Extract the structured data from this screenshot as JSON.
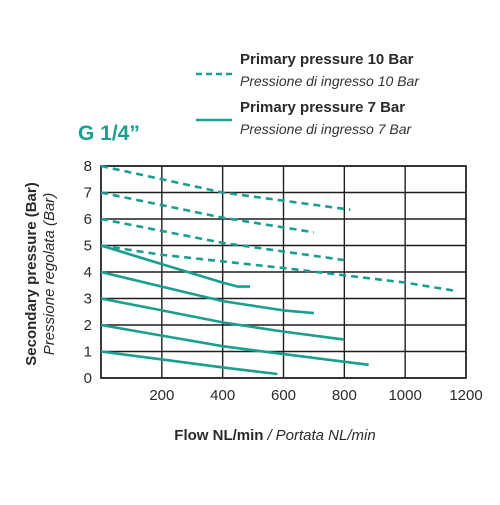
{
  "chart_data": {
    "type": "line",
    "title": "G 1/4”",
    "xlabel": "Flow NL/min",
    "xlabel_sub": "Portata NL/min",
    "ylabel": "Secondary pressure (Bar)",
    "ylabel_sub": "Pressione regolata (Bar)",
    "xlim": [
      0,
      1200
    ],
    "ylim": [
      0,
      8
    ],
    "xticks": [
      200,
      400,
      600,
      800,
      1000,
      1200
    ],
    "yticks": [
      0,
      1,
      2,
      3,
      4,
      5,
      6,
      7,
      8
    ],
    "grid": true,
    "legend_placement": "top-right",
    "accent_color": "#1a9e8f",
    "legend": [
      {
        "style": "dashed",
        "name": "Primary pressure 10 Bar",
        "name_sub": "Pressione di ingresso 10 Bar"
      },
      {
        "style": "solid",
        "name": "Primary pressure 7 Bar",
        "name_sub": "Pressione di ingresso 7 Bar"
      }
    ],
    "series": [
      {
        "group": "10 Bar",
        "style": "dashed",
        "x": [
          0,
          400,
          820
        ],
        "y": [
          8.0,
          7.0,
          6.35
        ]
      },
      {
        "group": "10 Bar",
        "style": "dashed",
        "x": [
          0,
          400,
          700
        ],
        "y": [
          7.0,
          6.05,
          5.5
        ]
      },
      {
        "group": "10 Bar",
        "style": "dashed",
        "x": [
          0,
          400,
          800
        ],
        "y": [
          6.0,
          5.1,
          4.45
        ]
      },
      {
        "group": "10 Bar",
        "style": "dashed",
        "x": [
          0,
          200,
          600,
          1000,
          1160
        ],
        "y": [
          5.0,
          4.65,
          4.15,
          3.6,
          3.3
        ]
      },
      {
        "group": "7 Bar",
        "style": "solid",
        "x": [
          0,
          200,
          400,
          450,
          490
        ],
        "y": [
          5.0,
          4.3,
          3.6,
          3.45,
          3.45
        ]
      },
      {
        "group": "7 Bar",
        "style": "solid",
        "x": [
          0,
          200,
          400,
          600,
          700
        ],
        "y": [
          4.0,
          3.45,
          2.9,
          2.55,
          2.45
        ]
      },
      {
        "group": "7 Bar",
        "style": "solid",
        "x": [
          0,
          200,
          400,
          600,
          800
        ],
        "y": [
          3.0,
          2.55,
          2.1,
          1.75,
          1.45
        ]
      },
      {
        "group": "7 Bar",
        "style": "solid",
        "x": [
          0,
          200,
          400,
          600,
          880
        ],
        "y": [
          2.0,
          1.6,
          1.2,
          0.9,
          0.5
        ]
      },
      {
        "group": "7 Bar",
        "style": "solid",
        "x": [
          0,
          200,
          400,
          580
        ],
        "y": [
          1.0,
          0.7,
          0.4,
          0.15
        ]
      }
    ]
  }
}
